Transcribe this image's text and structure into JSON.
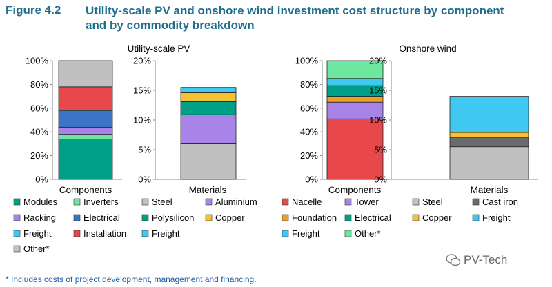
{
  "figure": {
    "label": "Figure 4.2",
    "title": "Utility-scale PV and onshore wind investment cost structure by component and by commodity breakdown"
  },
  "footnote": "* Includes costs of project development, management and financing.",
  "watermark": "PV-Tech",
  "chart_data": [
    {
      "id": "pv-components",
      "type": "bar",
      "stacked": true,
      "panel_title": "Utility-scale PV",
      "category": "Components",
      "ylim": [
        0,
        100
      ],
      "yticks": [
        "0%",
        "20%",
        "40%",
        "60%",
        "80%",
        "100%"
      ],
      "series": [
        {
          "name": "Modules",
          "value": 34,
          "color": "#00a088"
        },
        {
          "name": "Inverters",
          "value": 4,
          "color": "#6ee8a0"
        },
        {
          "name": "Racking",
          "value": 6,
          "color": "#a884e8"
        },
        {
          "name": "Electrical",
          "value": 13,
          "color": "#3b75c8"
        },
        {
          "name": "Freight",
          "value": 1,
          "color": "#41c8f0"
        },
        {
          "name": "Installation",
          "value": 20,
          "color": "#e8484a"
        },
        {
          "name": "Other*",
          "value": 22,
          "color": "#c0c0c0"
        }
      ]
    },
    {
      "id": "pv-materials",
      "type": "bar",
      "stacked": true,
      "category": "Materials",
      "ylim": [
        0,
        20
      ],
      "yticks": [
        "0%",
        "5%",
        "10%",
        "15%",
        "20%"
      ],
      "series": [
        {
          "name": "Steel",
          "value": 6.0,
          "color": "#c0c0c0"
        },
        {
          "name": "Aluminium",
          "value": 4.9,
          "color": "#a884e8"
        },
        {
          "name": "Polysilicon",
          "value": 2.2,
          "color": "#00a088"
        },
        {
          "name": "Copper",
          "value": 1.5,
          "color": "#f6c132"
        },
        {
          "name": "Freight",
          "value": 0.9,
          "color": "#41c8f0"
        }
      ]
    },
    {
      "id": "wind-components",
      "type": "bar",
      "stacked": true,
      "panel_title": "Onshore wind",
      "category": "Components",
      "ylim": [
        0,
        100
      ],
      "yticks": [
        "0%",
        "20%",
        "40%",
        "60%",
        "80%",
        "100%"
      ],
      "series": [
        {
          "name": "Nacelle",
          "value": 51,
          "color": "#e8484a"
        },
        {
          "name": "Tower",
          "value": 14,
          "color": "#a884e8"
        },
        {
          "name": "Foundation",
          "value": 5,
          "color": "#f0a01e"
        },
        {
          "name": "Electrical",
          "value": 9,
          "color": "#00a088"
        },
        {
          "name": "Freight",
          "value": 6,
          "color": "#41c8f0"
        },
        {
          "name": "Other*",
          "value": 15,
          "color": "#6ee8a0"
        }
      ]
    },
    {
      "id": "wind-materials",
      "type": "bar",
      "stacked": true,
      "category": "Materials",
      "ylim": [
        0,
        20
      ],
      "yticks": [
        "0%",
        "5%",
        "10%",
        "15%",
        "20%"
      ],
      "series": [
        {
          "name": "Steel",
          "value": 5.5,
          "color": "#c0c0c0"
        },
        {
          "name": "Cast iron",
          "value": 1.6,
          "color": "#6b6b6b"
        },
        {
          "name": "Copper",
          "value": 0.8,
          "color": "#f6c132"
        },
        {
          "name": "Freight",
          "value": 6.1,
          "color": "#41c8f0"
        }
      ]
    }
  ]
}
